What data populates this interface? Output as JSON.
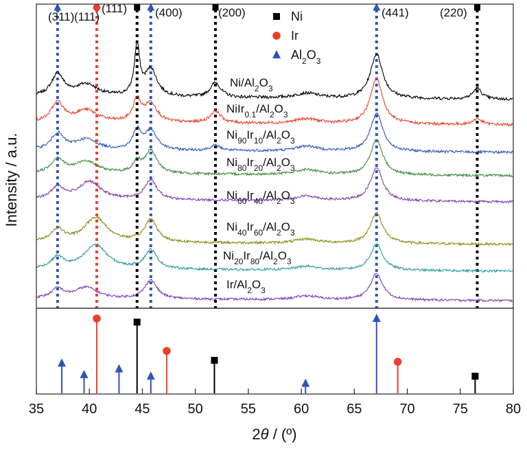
{
  "chart_data": {
    "type": "line",
    "x_axis": {
      "label_base": "2",
      "label_symbol": "θ",
      "label_rest": " / (º)",
      "range": [
        35,
        80
      ],
      "ticks": [
        35,
        40,
        45,
        50,
        55,
        60,
        65,
        70,
        75,
        80
      ]
    },
    "y_axis": {
      "label": "Intensity / a.u."
    },
    "legend": [
      {
        "marker": "square",
        "color": "#000000",
        "label": "Ni",
        "sub": ""
      },
      {
        "marker": "circle",
        "color": "#e8412c",
        "label": "Ir",
        "sub": ""
      },
      {
        "marker": "triangle",
        "color": "#2c55b8",
        "label": "Al",
        "sub": "2",
        "label2": "O",
        "sub2": "3"
      }
    ],
    "peak_labels": [
      {
        "text": "(311)",
        "x": 37.0,
        "marker": "triangle"
      },
      {
        "text": "(111)",
        "x": 40.7,
        "marker": "circle"
      },
      {
        "text": "(111)",
        "x": 44.5,
        "marker": "square"
      },
      {
        "text": "(400)",
        "x": 45.8,
        "marker": "triangle"
      },
      {
        "text": "(200)",
        "x": 51.9,
        "marker": "square"
      },
      {
        "text": "(441)",
        "x": 67.1,
        "marker": "triangle"
      },
      {
        "text": "(220)",
        "x": 76.6,
        "marker": "square"
      }
    ],
    "reference_lines": [
      {
        "x": 37.0,
        "color": "#2c55b8"
      },
      {
        "x": 40.7,
        "color": "#e8412c"
      },
      {
        "x": 44.5,
        "color": "#000000"
      },
      {
        "x": 45.8,
        "color": "#2c55b8"
      },
      {
        "x": 51.9,
        "color": "#000000"
      },
      {
        "x": 67.1,
        "color": "#2c55b8"
      },
      {
        "x": 76.6,
        "color": "#000000"
      }
    ],
    "series": [
      {
        "name": "Ni/Al2O3",
        "label_parts": [
          [
            "Ni/Al",
            ""
          ],
          [
            "2",
            "sub"
          ],
          [
            "O",
            ""
          ],
          [
            "3",
            "sub"
          ]
        ],
        "color": "#000000",
        "peaks": [
          [
            37.0,
            0.45
          ],
          [
            39.7,
            0.25
          ],
          [
            44.5,
            1.0
          ],
          [
            45.8,
            0.55
          ],
          [
            51.9,
            0.3
          ],
          [
            60.5,
            0.1
          ],
          [
            67.1,
            0.9
          ],
          [
            76.6,
            0.22
          ]
        ]
      },
      {
        "name": "NiIr0.1/Al2O3",
        "label_parts": [
          [
            "NiIr",
            ""
          ],
          [
            "0.1",
            "sub"
          ],
          [
            "/Al",
            ""
          ],
          [
            "2",
            "sub"
          ],
          [
            "O",
            ""
          ],
          [
            "3",
            "sub"
          ]
        ],
        "color": "#e8412c",
        "peaks": [
          [
            37.0,
            0.4
          ],
          [
            39.7,
            0.25
          ],
          [
            44.5,
            0.45
          ],
          [
            45.8,
            0.4
          ],
          [
            51.9,
            0.25
          ],
          [
            60.5,
            0.1
          ],
          [
            67.1,
            0.95
          ],
          [
            76.6,
            0.12
          ]
        ]
      },
      {
        "name": "Ni90Ir10/Al2O3",
        "label_parts": [
          [
            "Ni",
            ""
          ],
          [
            "90",
            "sub"
          ],
          [
            "Ir",
            ""
          ],
          [
            "10",
            "sub"
          ],
          [
            "/Al",
            ""
          ],
          [
            "2",
            "sub"
          ],
          [
            "O",
            ""
          ],
          [
            "3",
            "sub"
          ]
        ],
        "color": "#2c55b8",
        "peaks": [
          [
            37.0,
            0.38
          ],
          [
            39.7,
            0.25
          ],
          [
            44.5,
            0.45
          ],
          [
            45.8,
            0.45
          ],
          [
            51.9,
            0.12
          ],
          [
            60.5,
            0.12
          ],
          [
            67.1,
            0.9
          ]
        ]
      },
      {
        "name": "Ni80Ir20/Al2O3",
        "label_parts": [
          [
            "Ni",
            ""
          ],
          [
            "80",
            "sub"
          ],
          [
            "Ir",
            ""
          ],
          [
            "20",
            "sub"
          ],
          [
            "/Al",
            ""
          ],
          [
            "2",
            "sub"
          ],
          [
            "O",
            ""
          ],
          [
            "3",
            "sub"
          ]
        ],
        "color": "#3a8a3a",
        "peaks": [
          [
            37.0,
            0.35
          ],
          [
            39.7,
            0.3
          ],
          [
            44.5,
            0.25
          ],
          [
            45.8,
            0.55
          ],
          [
            60.5,
            0.12
          ],
          [
            67.1,
            0.85
          ]
        ]
      },
      {
        "name": "Ni60Ir40/Al2O3",
        "label_parts": [
          [
            "Ni",
            ""
          ],
          [
            "60",
            "sub"
          ],
          [
            "Ir",
            ""
          ],
          [
            "40",
            "sub"
          ],
          [
            "/Al",
            ""
          ],
          [
            "2",
            "sub"
          ],
          [
            "O",
            ""
          ],
          [
            "3",
            "sub"
          ]
        ],
        "color": "#7b3fb0",
        "peaks": [
          [
            37.0,
            0.3
          ],
          [
            40.0,
            0.45
          ],
          [
            45.8,
            0.5
          ],
          [
            60.5,
            0.12
          ],
          [
            67.1,
            0.85
          ]
        ]
      },
      {
        "name": "Ni40Ir60/Al2O3",
        "label_parts": [
          [
            "Ni",
            ""
          ],
          [
            "40",
            "sub"
          ],
          [
            "Ir",
            ""
          ],
          [
            "60",
            "sub"
          ],
          [
            "/Al",
            ""
          ],
          [
            "2",
            "sub"
          ],
          [
            "O",
            ""
          ],
          [
            "3",
            "sub"
          ]
        ],
        "color": "#8a8a10",
        "peaks": [
          [
            37.0,
            0.3
          ],
          [
            40.6,
            0.6
          ],
          [
            45.8,
            0.55
          ],
          [
            60.5,
            0.1
          ],
          [
            67.1,
            0.75
          ]
        ]
      },
      {
        "name": "Ni20Ir80/Al2O3",
        "label_parts": [
          [
            "Ni",
            ""
          ],
          [
            "20",
            "sub"
          ],
          [
            "Ir",
            ""
          ],
          [
            "80",
            "sub"
          ],
          [
            "/Al",
            ""
          ],
          [
            "2",
            "sub"
          ],
          [
            "O",
            ""
          ],
          [
            "3",
            "sub"
          ]
        ],
        "color": "#2a9a9a",
        "peaks": [
          [
            37.0,
            0.3
          ],
          [
            40.6,
            0.65
          ],
          [
            45.8,
            0.5
          ],
          [
            60.5,
            0.1
          ],
          [
            67.1,
            0.7
          ]
        ]
      },
      {
        "name": "Ir/Al2O3",
        "label_parts": [
          [
            "Ir/Al",
            ""
          ],
          [
            "2",
            "sub"
          ],
          [
            "O",
            ""
          ],
          [
            "3",
            "sub"
          ]
        ],
        "color": "#7b3fb0",
        "peaks": [
          [
            37.0,
            0.25
          ],
          [
            39.7,
            0.3
          ],
          [
            45.8,
            0.5
          ],
          [
            60.5,
            0.1
          ],
          [
            67.1,
            0.7
          ]
        ]
      }
    ],
    "reference_pattern": [
      {
        "phase": "Al2O3",
        "x": 37.4,
        "intensity": 0.38,
        "marker": "triangle",
        "color": "#2c55b8"
      },
      {
        "phase": "Al2O3",
        "x": 39.5,
        "intensity": 0.22,
        "marker": "triangle",
        "color": "#2c55b8"
      },
      {
        "phase": "Ir",
        "x": 40.7,
        "intensity": 1.0,
        "marker": "circle",
        "color": "#e8412c"
      },
      {
        "phase": "Al2O3",
        "x": 42.8,
        "intensity": 0.3,
        "marker": "triangle",
        "color": "#2c55b8"
      },
      {
        "phase": "Ni",
        "x": 44.5,
        "intensity": 0.95,
        "marker": "square",
        "color": "#000000"
      },
      {
        "phase": "Al2O3",
        "x": 45.8,
        "intensity": 0.2,
        "marker": "triangle",
        "color": "#2c55b8"
      },
      {
        "phase": "Ir",
        "x": 47.3,
        "intensity": 0.55,
        "marker": "circle",
        "color": "#e8412c"
      },
      {
        "phase": "Ni",
        "x": 51.8,
        "intensity": 0.42,
        "marker": "square",
        "color": "#000000"
      },
      {
        "phase": "Al2O3",
        "x": 60.4,
        "intensity": 0.1,
        "marker": "triangle",
        "color": "#2c55b8"
      },
      {
        "phase": "Al2O3",
        "x": 67.1,
        "intensity": 1.0,
        "marker": "triangle",
        "color": "#2c55b8"
      },
      {
        "phase": "Ir",
        "x": 69.1,
        "intensity": 0.4,
        "marker": "circle",
        "color": "#e8412c"
      },
      {
        "phase": "Ni",
        "x": 76.4,
        "intensity": 0.2,
        "marker": "square",
        "color": "#000000"
      }
    ]
  }
}
